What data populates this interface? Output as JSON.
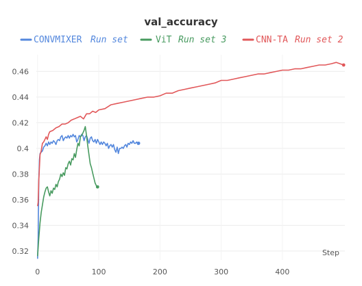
{
  "chart_data": {
    "type": "line",
    "title": "val_accuracy",
    "xlabel": "Step",
    "ylabel": "",
    "xlim": [
      -2,
      502
    ],
    "ylim": [
      0.313,
      0.473
    ],
    "x_ticks": [
      0,
      100,
      200,
      300,
      400
    ],
    "y_ticks": [
      0.32,
      0.34,
      0.36,
      0.38,
      0.4,
      0.42,
      0.44,
      0.46
    ],
    "y_tick_labels": [
      "0.32",
      "0.34",
      "0.36",
      "0.38",
      "0.4",
      "0.42",
      "0.44",
      "0.46"
    ],
    "grid": true,
    "legend_position": "top",
    "series": [
      {
        "name": "CONVMIXER",
        "run": "Run set",
        "color": "#5387dd",
        "points": [
          [
            0,
            0.314
          ],
          [
            1,
            0.33
          ],
          [
            2,
            0.375
          ],
          [
            3,
            0.391
          ],
          [
            4,
            0.396
          ],
          [
            6,
            0.397
          ],
          [
            8,
            0.398
          ],
          [
            10,
            0.401
          ],
          [
            12,
            0.402
          ],
          [
            14,
            0.404
          ],
          [
            16,
            0.402
          ],
          [
            18,
            0.405
          ],
          [
            20,
            0.403
          ],
          [
            22,
            0.405
          ],
          [
            24,
            0.404
          ],
          [
            26,
            0.406
          ],
          [
            28,
            0.405
          ],
          [
            30,
            0.403
          ],
          [
            32,
            0.406
          ],
          [
            34,
            0.407
          ],
          [
            36,
            0.406
          ],
          [
            38,
            0.409
          ],
          [
            40,
            0.41
          ],
          [
            42,
            0.406
          ],
          [
            44,
            0.408
          ],
          [
            46,
            0.409
          ],
          [
            48,
            0.408
          ],
          [
            50,
            0.41
          ],
          [
            52,
            0.408
          ],
          [
            54,
            0.41
          ],
          [
            56,
            0.409
          ],
          [
            58,
            0.411
          ],
          [
            60,
            0.409
          ],
          [
            62,
            0.41
          ],
          [
            64,
            0.405
          ],
          [
            66,
            0.407
          ],
          [
            68,
            0.41
          ],
          [
            70,
            0.409
          ],
          [
            72,
            0.411
          ],
          [
            74,
            0.41
          ],
          [
            76,
            0.406
          ],
          [
            78,
            0.409
          ],
          [
            80,
            0.41
          ],
          [
            82,
            0.407
          ],
          [
            84,
            0.404
          ],
          [
            86,
            0.408
          ],
          [
            88,
            0.409
          ],
          [
            90,
            0.406
          ],
          [
            92,
            0.405
          ],
          [
            94,
            0.407
          ],
          [
            96,
            0.404
          ],
          [
            98,
            0.407
          ],
          [
            100,
            0.405
          ],
          [
            102,
            0.403
          ],
          [
            104,
            0.405
          ],
          [
            106,
            0.403
          ],
          [
            108,
            0.405
          ],
          [
            110,
            0.404
          ],
          [
            112,
            0.402
          ],
          [
            114,
            0.404
          ],
          [
            116,
            0.4
          ],
          [
            118,
            0.402
          ],
          [
            120,
            0.403
          ],
          [
            122,
            0.401
          ],
          [
            124,
            0.403
          ],
          [
            126,
            0.399
          ],
          [
            128,
            0.397
          ],
          [
            130,
            0.401
          ],
          [
            132,
            0.396
          ],
          [
            134,
            0.4
          ],
          [
            136,
            0.4
          ],
          [
            138,
            0.401
          ],
          [
            140,
            0.4
          ],
          [
            142,
            0.402
          ],
          [
            144,
            0.403
          ],
          [
            146,
            0.401
          ],
          [
            148,
            0.404
          ],
          [
            150,
            0.403
          ],
          [
            152,
            0.405
          ],
          [
            154,
            0.404
          ],
          [
            156,
            0.406
          ],
          [
            158,
            0.404
          ],
          [
            160,
            0.404
          ],
          [
            162,
            0.405
          ],
          [
            164,
            0.403
          ],
          [
            165,
            0.404
          ]
        ]
      },
      {
        "name": "ViT",
        "run": "Run set 3",
        "color": "#479a5f",
        "points": [
          [
            0,
            0.316
          ],
          [
            1,
            0.323
          ],
          [
            2,
            0.33
          ],
          [
            3,
            0.336
          ],
          [
            4,
            0.342
          ],
          [
            6,
            0.35
          ],
          [
            8,
            0.356
          ],
          [
            10,
            0.362
          ],
          [
            12,
            0.366
          ],
          [
            14,
            0.369
          ],
          [
            16,
            0.37
          ],
          [
            18,
            0.366
          ],
          [
            20,
            0.363
          ],
          [
            22,
            0.367
          ],
          [
            24,
            0.365
          ],
          [
            26,
            0.369
          ],
          [
            28,
            0.368
          ],
          [
            30,
            0.372
          ],
          [
            32,
            0.37
          ],
          [
            34,
            0.374
          ],
          [
            36,
            0.376
          ],
          [
            38,
            0.38
          ],
          [
            40,
            0.378
          ],
          [
            42,
            0.381
          ],
          [
            44,
            0.379
          ],
          [
            46,
            0.385
          ],
          [
            48,
            0.384
          ],
          [
            50,
            0.388
          ],
          [
            52,
            0.39
          ],
          [
            54,
            0.387
          ],
          [
            56,
            0.392
          ],
          [
            58,
            0.391
          ],
          [
            60,
            0.396
          ],
          [
            62,
            0.393
          ],
          [
            64,
            0.399
          ],
          [
            66,
            0.404
          ],
          [
            68,
            0.402
          ],
          [
            70,
            0.409
          ],
          [
            72,
            0.41
          ],
          [
            74,
            0.412
          ],
          [
            76,
            0.414
          ],
          [
            78,
            0.417
          ],
          [
            80,
            0.41
          ],
          [
            82,
            0.402
          ],
          [
            84,
            0.395
          ],
          [
            86,
            0.388
          ],
          [
            88,
            0.385
          ],
          [
            90,
            0.381
          ],
          [
            92,
            0.377
          ],
          [
            94,
            0.373
          ],
          [
            96,
            0.371
          ],
          [
            98,
            0.37
          ]
        ]
      },
      {
        "name": "CNN-TA",
        "run": "Run set 2",
        "color": "#e15759",
        "points": [
          [
            0,
            0.355
          ],
          [
            1,
            0.358
          ],
          [
            2,
            0.375
          ],
          [
            4,
            0.395
          ],
          [
            6,
            0.398
          ],
          [
            8,
            0.404
          ],
          [
            10,
            0.405
          ],
          [
            12,
            0.407
          ],
          [
            14,
            0.409
          ],
          [
            16,
            0.407
          ],
          [
            18,
            0.411
          ],
          [
            20,
            0.413
          ],
          [
            25,
            0.414
          ],
          [
            30,
            0.416
          ],
          [
            35,
            0.417
          ],
          [
            40,
            0.419
          ],
          [
            45,
            0.419
          ],
          [
            50,
            0.42
          ],
          [
            55,
            0.422
          ],
          [
            60,
            0.423
          ],
          [
            65,
            0.424
          ],
          [
            70,
            0.425
          ],
          [
            75,
            0.423
          ],
          [
            80,
            0.427
          ],
          [
            85,
            0.427
          ],
          [
            90,
            0.429
          ],
          [
            95,
            0.428
          ],
          [
            100,
            0.43
          ],
          [
            110,
            0.431
          ],
          [
            120,
            0.434
          ],
          [
            130,
            0.435
          ],
          [
            140,
            0.436
          ],
          [
            150,
            0.437
          ],
          [
            160,
            0.438
          ],
          [
            170,
            0.439
          ],
          [
            180,
            0.44
          ],
          [
            190,
            0.44
          ],
          [
            200,
            0.441
          ],
          [
            210,
            0.443
          ],
          [
            220,
            0.443
          ],
          [
            230,
            0.445
          ],
          [
            240,
            0.446
          ],
          [
            250,
            0.447
          ],
          [
            260,
            0.448
          ],
          [
            270,
            0.449
          ],
          [
            280,
            0.45
          ],
          [
            290,
            0.451
          ],
          [
            300,
            0.453
          ],
          [
            310,
            0.453
          ],
          [
            320,
            0.454
          ],
          [
            330,
            0.455
          ],
          [
            340,
            0.456
          ],
          [
            350,
            0.457
          ],
          [
            360,
            0.458
          ],
          [
            370,
            0.458
          ],
          [
            380,
            0.459
          ],
          [
            390,
            0.46
          ],
          [
            400,
            0.461
          ],
          [
            410,
            0.461
          ],
          [
            420,
            0.462
          ],
          [
            430,
            0.462
          ],
          [
            440,
            0.463
          ],
          [
            450,
            0.464
          ],
          [
            460,
            0.465
          ],
          [
            470,
            0.465
          ],
          [
            480,
            0.466
          ],
          [
            488,
            0.467
          ],
          [
            494,
            0.466
          ],
          [
            500,
            0.465
          ]
        ]
      }
    ]
  }
}
